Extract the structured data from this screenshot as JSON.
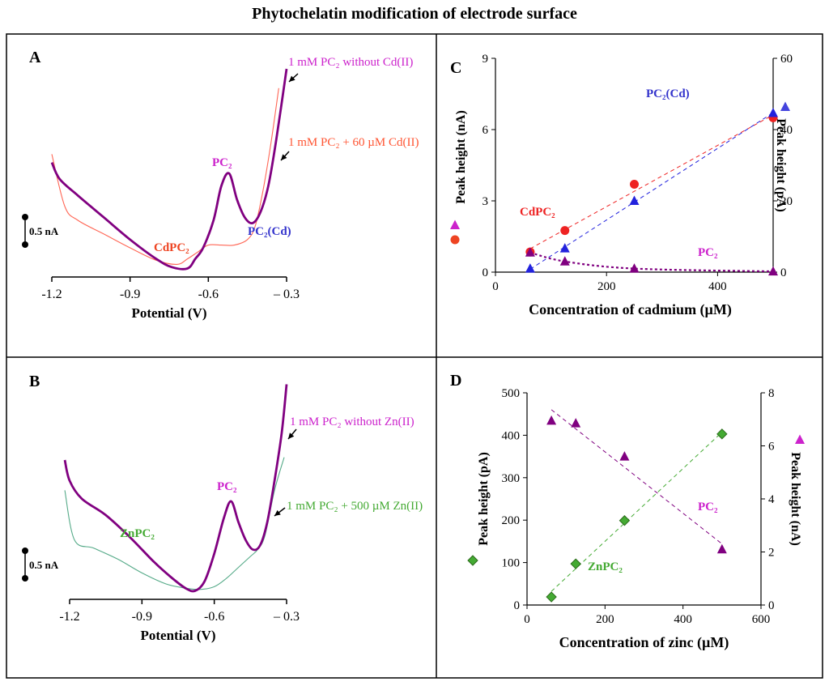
{
  "title": "Phytochelatin modification of electrode surface",
  "chart_data": [
    {
      "panel": "A",
      "type": "line",
      "xlabel": "Potential (V)",
      "x_ticks": [
        "-1.2",
        "-0.9",
        "-0.6",
        "– 0.3"
      ],
      "xlim": [
        -1.2,
        -0.3
      ],
      "scale_bar": "0.5 nA",
      "series": [
        {
          "name": "1 mM PC₂ without Cd(II)",
          "color": "#800080",
          "x": [
            -1.2,
            -1.17,
            -1.1,
            -1.0,
            -0.9,
            -0.8,
            -0.74,
            -0.68,
            -0.65,
            -0.62,
            -0.58,
            -0.55,
            -0.52,
            -0.49,
            -0.46,
            -0.43,
            -0.4,
            -0.37,
            -0.34,
            -0.3
          ],
          "y": [
            0.82,
            0.7,
            0.58,
            0.42,
            0.26,
            0.12,
            0.06,
            0.05,
            0.12,
            0.2,
            0.4,
            0.65,
            0.74,
            0.55,
            0.42,
            0.38,
            0.46,
            0.65,
            0.98,
            1.5
          ]
        },
        {
          "name": "1 mM PC₂ + 60 µM Cd(II)",
          "color": "#ff6655",
          "x": [
            -1.2,
            -1.15,
            -1.1,
            -1.0,
            -0.9,
            -0.8,
            -0.72,
            -0.68,
            -0.64,
            -0.6,
            -0.55,
            -0.5,
            -0.45,
            -0.42,
            -0.39,
            -0.36,
            -0.33
          ],
          "y": [
            0.88,
            0.5,
            0.4,
            0.3,
            0.2,
            0.11,
            0.08,
            0.12,
            0.17,
            0.22,
            0.22,
            0.22,
            0.26,
            0.36,
            0.62,
            0.96,
            1.36
          ]
        }
      ],
      "annotations": [
        "1 mM PC₂ without Cd(II)",
        "1 mM PC₂ + 60 µM Cd(II)",
        "PC₂",
        "CdPC₂",
        "PC₂(Cd)"
      ]
    },
    {
      "panel": "B",
      "type": "line",
      "xlabel": "Potential (V)",
      "x_ticks": [
        "-1.2",
        "-0.9",
        "-0.6",
        "– 0.3"
      ],
      "xlim": [
        -1.2,
        -0.3
      ],
      "scale_bar": "0.5 nA",
      "series": [
        {
          "name": "1 mM PC₂ without Zn(II)",
          "color": "#800080",
          "x": [
            -1.22,
            -1.2,
            -1.15,
            -1.05,
            -0.95,
            -0.85,
            -0.78,
            -0.72,
            -0.68,
            -0.64,
            -0.6,
            -0.56,
            -0.53,
            -0.5,
            -0.47,
            -0.44,
            -0.41,
            -0.38,
            -0.35,
            -0.32,
            -0.3
          ],
          "y": [
            1.0,
            0.85,
            0.72,
            0.6,
            0.44,
            0.26,
            0.15,
            0.07,
            0.05,
            0.12,
            0.32,
            0.58,
            0.7,
            0.55,
            0.42,
            0.35,
            0.38,
            0.55,
            0.85,
            1.2,
            1.55
          ]
        },
        {
          "name": "1 mM PC₂ + 500 µM Zn(II)",
          "color": "#55aa88",
          "x": [
            -1.22,
            -1.18,
            -1.1,
            -1.0,
            -0.9,
            -0.8,
            -0.72,
            -0.66,
            -0.6,
            -0.55,
            -0.5,
            -0.45,
            -0.42,
            -0.39,
            -0.35,
            -0.31
          ],
          "y": [
            0.78,
            0.42,
            0.36,
            0.28,
            0.18,
            0.1,
            0.07,
            0.06,
            0.08,
            0.14,
            0.22,
            0.3,
            0.35,
            0.45,
            0.78,
            1.02
          ]
        }
      ],
      "annotations": [
        "1 mM PC₂ without Zn(II)",
        "1 mM PC₂ + 500 µM Zn(II)",
        "PC₂",
        "ZnPC₂"
      ]
    },
    {
      "panel": "C",
      "type": "scatter",
      "xlabel": "Concentration of  cadmium (µM)",
      "ylabel_left": "Peak height (nA)",
      "ylabel_right": "Peak height (pA)",
      "xlim": [
        0,
        500
      ],
      "ylim_left": [
        0,
        9
      ],
      "ylim_right": [
        0,
        60
      ],
      "x_ticks": [
        "0",
        "200",
        "400"
      ],
      "y_ticks_left": [
        "0",
        "3",
        "6",
        "9"
      ],
      "y_ticks_right": [
        "0",
        "20",
        "40",
        "60"
      ],
      "series": [
        {
          "name": "CdPC₂",
          "axis": "left",
          "color": "#ee2222",
          "marker": "circle",
          "x": [
            62.5,
            125,
            250,
            500
          ],
          "y": [
            0.85,
            1.75,
            3.7,
            6.5
          ]
        },
        {
          "name": "PC₂(Cd)",
          "axis": "left",
          "color": "#2222dd",
          "marker": "triangle",
          "x": [
            62.5,
            125,
            250,
            500
          ],
          "y": [
            0.15,
            1.0,
            3.0,
            6.7
          ]
        },
        {
          "name": "PC₂",
          "axis": "right",
          "color": "#800080",
          "marker": "triangle",
          "x": [
            62.5,
            125,
            250,
            500
          ],
          "y": [
            5.5,
            3.0,
            1.0,
            0.2
          ]
        }
      ],
      "annotations": [
        "PC₂(Cd)",
        "CdPC₂",
        "PC₂"
      ]
    },
    {
      "panel": "D",
      "type": "scatter",
      "xlabel": "Concentration of  zinc (µM)",
      "ylabel_left": "Peak height (pA)",
      "ylabel_right": "Peak height (nA)",
      "xlim": [
        0,
        600
      ],
      "ylim_left": [
        0,
        500
      ],
      "ylim_right": [
        0,
        8
      ],
      "x_ticks": [
        "0",
        "200",
        "400",
        "600"
      ],
      "y_ticks_left": [
        "0",
        "100",
        "200",
        "300",
        "400",
        "500"
      ],
      "y_ticks_right": [
        "0",
        "2",
        "4",
        "6",
        "8"
      ],
      "series": [
        {
          "name": "ZnPC₂",
          "axis": "left",
          "color": "#44aa33",
          "marker": "diamond",
          "x": [
            62.5,
            125,
            250,
            500
          ],
          "y": [
            19,
            97,
            199,
            403
          ]
        },
        {
          "name": "PC₂",
          "axis": "right",
          "color": "#800080",
          "marker": "triangle",
          "x": [
            62.5,
            125,
            250,
            500
          ],
          "y": [
            6.95,
            6.85,
            5.6,
            2.1
          ]
        }
      ],
      "annotations": [
        "ZnPC₂",
        "PC₂"
      ]
    }
  ]
}
